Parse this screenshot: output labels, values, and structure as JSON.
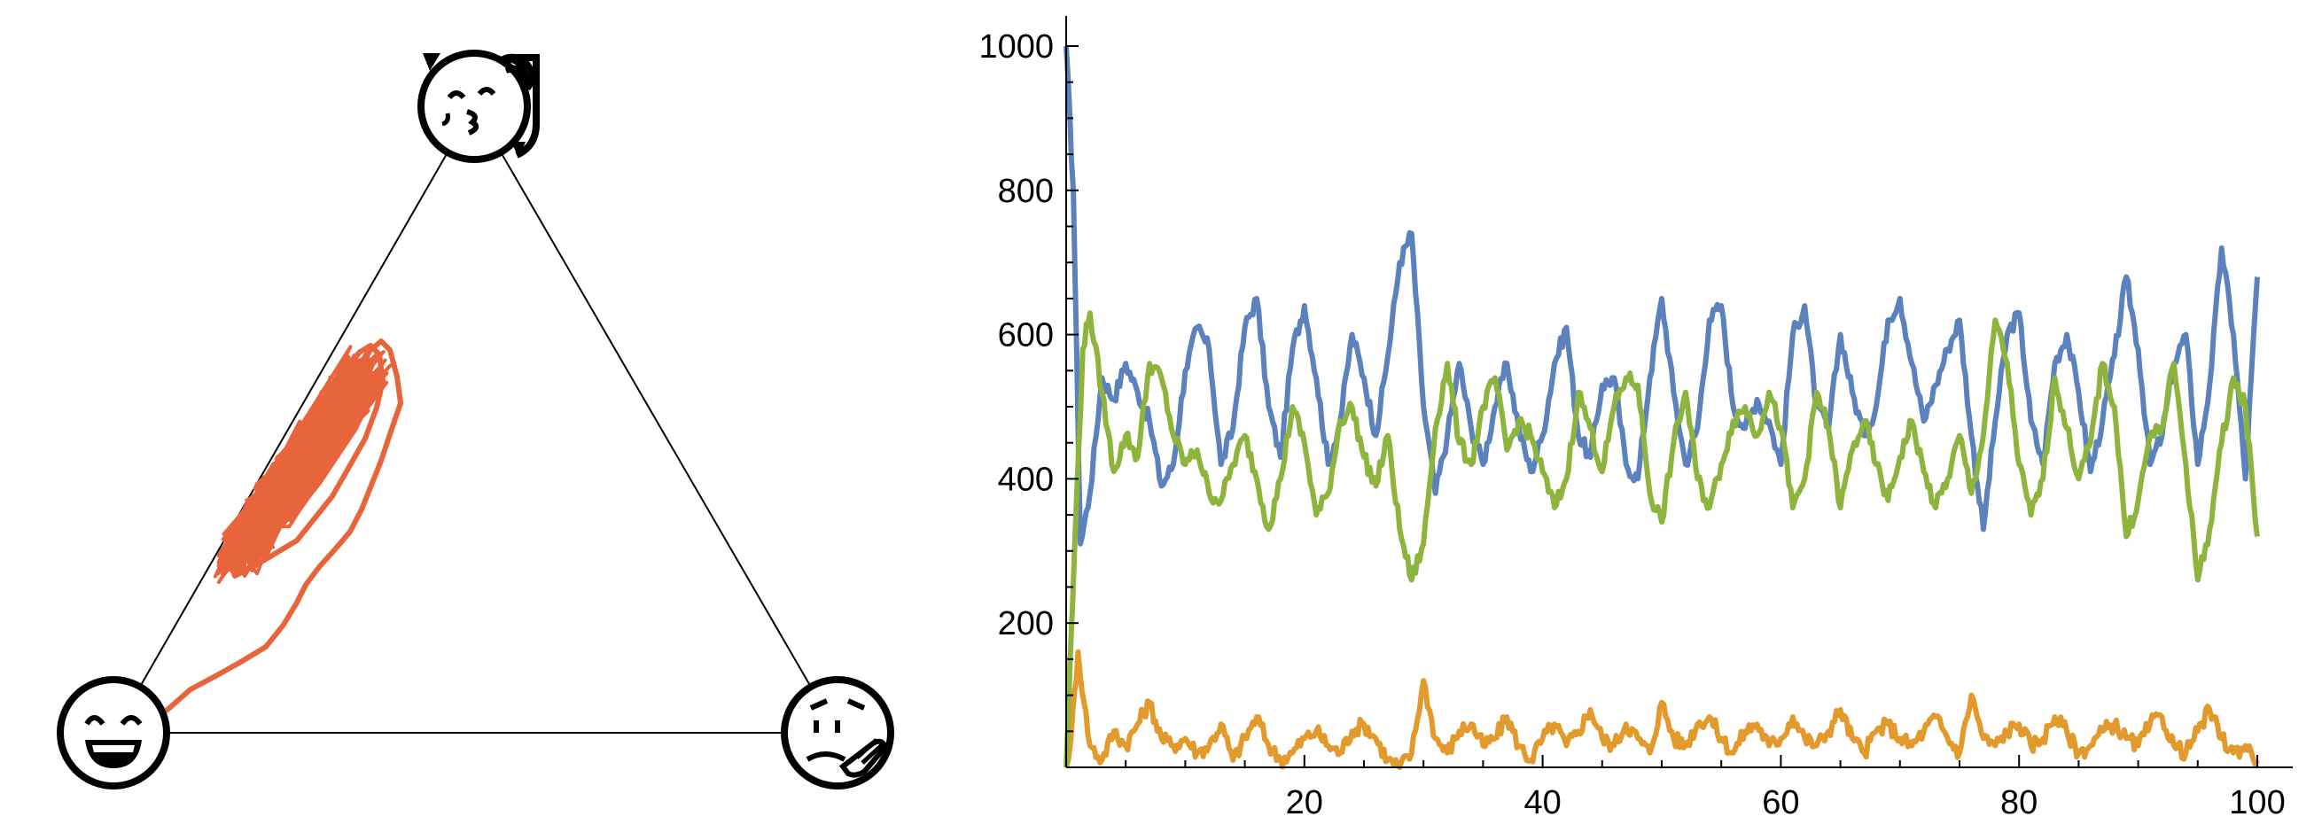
{
  "chart_data": [
    {
      "type": "line",
      "subtype": "ternary-trajectory",
      "title": "",
      "vertices": [
        {
          "position": "top",
          "icon": "kissing-face-with-hat-icon"
        },
        {
          "position": "bottom-left",
          "icon": "laughing-face-icon"
        },
        {
          "position": "bottom-right",
          "icon": "pensive-face-with-hand-icon"
        }
      ],
      "series": [
        {
          "color": "#E8643A"
        }
      ]
    },
    {
      "type": "line",
      "title": "",
      "xlabel": "",
      "ylabel": "",
      "xlim": [
        0,
        100
      ],
      "ylim": [
        0,
        1000
      ],
      "xticks": [
        20,
        40,
        60,
        80,
        100
      ],
      "yticks": [
        200,
        400,
        600,
        800,
        1000
      ],
      "grid": false,
      "series": [
        {
          "color": "#5B82BD",
          "x": [
            0,
            0.6,
            1.2,
            2,
            3,
            4,
            5,
            6,
            7,
            8,
            9,
            10,
            11,
            12,
            13,
            14,
            15,
            16,
            17,
            18,
            19,
            20,
            21,
            22,
            23,
            24,
            25,
            26,
            27,
            28,
            29,
            30,
            31,
            32,
            33,
            34,
            35,
            36,
            37,
            38,
            39,
            40,
            41,
            42,
            43,
            44,
            45,
            46,
            47,
            48,
            49,
            50,
            51,
            52,
            53,
            54,
            55,
            56,
            57,
            58,
            59,
            60,
            61,
            62,
            63,
            64,
            65,
            66,
            67,
            68,
            69,
            70,
            71,
            72,
            73,
            74,
            75,
            76,
            77,
            78,
            79,
            80,
            81,
            82,
            83,
            84,
            85,
            86,
            87,
            88,
            89,
            90,
            91,
            92,
            93,
            94,
            95,
            96,
            97,
            98,
            99,
            100
          ],
          "values": [
            1000,
            800,
            310,
            380,
            540,
            510,
            560,
            520,
            480,
            390,
            420,
            550,
            610,
            580,
            420,
            470,
            610,
            650,
            500,
            430,
            580,
            640,
            540,
            420,
            480,
            600,
            540,
            460,
            570,
            700,
            740,
            500,
            380,
            460,
            560,
            470,
            420,
            500,
            560,
            470,
            410,
            460,
            560,
            610,
            460,
            430,
            530,
            540,
            420,
            400,
            540,
            650,
            520,
            420,
            470,
            620,
            640,
            500,
            470,
            510,
            480,
            420,
            600,
            640,
            500,
            470,
            600,
            520,
            460,
            500,
            620,
            650,
            560,
            480,
            530,
            580,
            620,
            460,
            330,
            480,
            600,
            630,
            480,
            420,
            560,
            600,
            520,
            410,
            480,
            570,
            680,
            580,
            420,
            460,
            560,
            600,
            420,
            530,
            720,
            600,
            400,
            680
          ]
        },
        {
          "color": "#E39A2D",
          "x": [
            0,
            0.4,
            1,
            1.5,
            2,
            3,
            4,
            5,
            6,
            7,
            8,
            9,
            10,
            11,
            12,
            13,
            14,
            15,
            16,
            17,
            18,
            19,
            20,
            21,
            22,
            23,
            24,
            25,
            26,
            27,
            28,
            29,
            30,
            31,
            32,
            33,
            34,
            35,
            36,
            37,
            38,
            39,
            40,
            41,
            42,
            43,
            44,
            45,
            46,
            47,
            48,
            49,
            50,
            51,
            52,
            53,
            54,
            55,
            56,
            57,
            58,
            59,
            60,
            61,
            62,
            63,
            64,
            65,
            66,
            67,
            68,
            69,
            70,
            71,
            72,
            73,
            74,
            75,
            76,
            77,
            78,
            79,
            80,
            81,
            82,
            83,
            84,
            85,
            86,
            87,
            88,
            89,
            90,
            91,
            92,
            93,
            94,
            95,
            96,
            97,
            98,
            99,
            100
          ],
          "values": [
            0,
            40,
            160,
            90,
            30,
            10,
            50,
            30,
            60,
            90,
            40,
            30,
            40,
            20,
            30,
            60,
            10,
            40,
            70,
            30,
            10,
            20,
            40,
            50,
            30,
            20,
            50,
            60,
            40,
            10,
            0,
            20,
            120,
            40,
            20,
            50,
            60,
            30,
            40,
            70,
            30,
            10,
            40,
            60,
            30,
            50,
            80,
            40,
            30,
            60,
            40,
            20,
            90,
            40,
            30,
            60,
            70,
            40,
            20,
            50,
            60,
            30,
            40,
            70,
            40,
            30,
            50,
            80,
            40,
            20,
            50,
            60,
            40,
            30,
            50,
            70,
            40,
            20,
            100,
            40,
            30,
            50,
            60,
            30,
            40,
            70,
            50,
            20,
            30,
            50,
            60,
            40,
            30,
            60,
            70,
            30,
            20,
            50,
            80,
            40,
            20,
            30,
            10
          ]
        },
        {
          "color": "#8DB43C",
          "x": [
            0,
            0.7,
            1.4,
            2,
            3,
            4,
            5,
            6,
            7,
            8,
            9,
            10,
            11,
            12,
            13,
            14,
            15,
            16,
            17,
            18,
            19,
            20,
            21,
            22,
            23,
            24,
            25,
            26,
            27,
            28,
            29,
            30,
            31,
            32,
            33,
            34,
            35,
            36,
            37,
            38,
            39,
            40,
            41,
            42,
            43,
            44,
            45,
            46,
            47,
            48,
            49,
            50,
            51,
            52,
            53,
            54,
            55,
            56,
            57,
            58,
            59,
            60,
            61,
            62,
            63,
            64,
            65,
            66,
            67,
            68,
            69,
            70,
            71,
            72,
            73,
            74,
            75,
            76,
            77,
            78,
            79,
            80,
            81,
            82,
            83,
            84,
            85,
            86,
            87,
            88,
            89,
            90,
            91,
            92,
            93,
            94,
            95,
            96,
            97,
            98,
            99,
            100
          ],
          "values": [
            0,
            300,
            580,
            630,
            520,
            410,
            460,
            430,
            560,
            540,
            460,
            420,
            440,
            380,
            370,
            420,
            460,
            400,
            330,
            400,
            500,
            450,
            350,
            380,
            480,
            500,
            430,
            390,
            460,
            330,
            260,
            310,
            470,
            560,
            450,
            420,
            500,
            540,
            440,
            480,
            460,
            410,
            360,
            400,
            520,
            470,
            410,
            500,
            540,
            530,
            380,
            340,
            450,
            520,
            400,
            360,
            420,
            480,
            500,
            460,
            520,
            470,
            360,
            400,
            520,
            470,
            360,
            440,
            480,
            420,
            370,
            430,
            480,
            410,
            360,
            400,
            460,
            380,
            460,
            620,
            560,
            420,
            350,
            400,
            540,
            470,
            400,
            450,
            560,
            500,
            320,
            370,
            460,
            470,
            560,
            420,
            260,
            330,
            450,
            540,
            500,
            320
          ]
        }
      ]
    }
  ]
}
